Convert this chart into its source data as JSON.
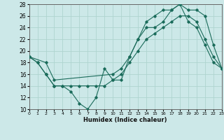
{
  "xlabel": "Humidex (Indice chaleur)",
  "bg_color": "#cce8e8",
  "grid_color": "#afd4d0",
  "line_color": "#1a6b5a",
  "xlim": [
    0,
    23
  ],
  "ylim": [
    10,
    28
  ],
  "xticks": [
    0,
    1,
    2,
    3,
    4,
    5,
    6,
    7,
    8,
    9,
    10,
    11,
    12,
    13,
    14,
    15,
    16,
    17,
    18,
    19,
    20,
    21,
    22,
    23
  ],
  "yticks": [
    10,
    12,
    14,
    16,
    18,
    20,
    22,
    24,
    26,
    28
  ],
  "line1_x": [
    0,
    1,
    2,
    3,
    4,
    5,
    6,
    7,
    8,
    9,
    10,
    11,
    12,
    13,
    14,
    15,
    16,
    17,
    18,
    19,
    20,
    21,
    22,
    23
  ],
  "line1_y": [
    19,
    18,
    16,
    14,
    14,
    13,
    11,
    10,
    12,
    17,
    15,
    15,
    19,
    22,
    24,
    24,
    25,
    27,
    28,
    25,
    24,
    21,
    18,
    17
  ],
  "line2_x": [
    0,
    1,
    2,
    3,
    4,
    5,
    6,
    7,
    8,
    9,
    10,
    11,
    12,
    13,
    14,
    15,
    16,
    17,
    18,
    19,
    20,
    21,
    22,
    23
  ],
  "line2_y": [
    19,
    18,
    16,
    14,
    14,
    14,
    14,
    14,
    14,
    14,
    15,
    16,
    18,
    20,
    22,
    23,
    24,
    25,
    26,
    26,
    25,
    22,
    19,
    17
  ],
  "line3_x": [
    0,
    2,
    3,
    10,
    11,
    12,
    13,
    14,
    15,
    16,
    17,
    18,
    19,
    20,
    21,
    22,
    23
  ],
  "line3_y": [
    19,
    18,
    15,
    16,
    17,
    19,
    22,
    25,
    26,
    27,
    27,
    28,
    27,
    27,
    26,
    21,
    17
  ]
}
